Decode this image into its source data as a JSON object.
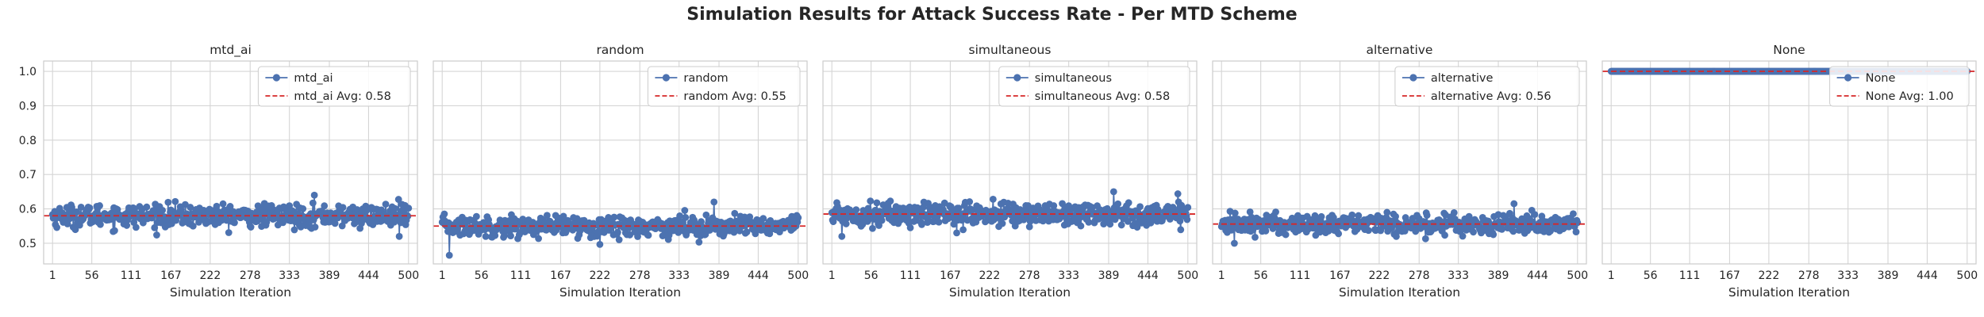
{
  "chart_data": {
    "type": "line",
    "title": "Simulation Results for Attack Success Rate - Per MTD Scheme",
    "xlabel": "Simulation Iteration",
    "ylabel": "",
    "xlim": [
      1,
      500
    ],
    "ylim": [
      0.44,
      1.03
    ],
    "xticks": [
      "1",
      "56",
      "111",
      "167",
      "222",
      "278",
      "333",
      "389",
      "444",
      "500"
    ],
    "yticks": [
      "0.5",
      "0.6",
      "0.7",
      "0.8",
      "0.9",
      "1.0"
    ],
    "grid": true,
    "shared_y": true,
    "panels": [
      {
        "title": "mtd_ai",
        "series_name": "mtd_ai",
        "avg_label": "mtd_ai Avg: 0.58",
        "avg": 0.58,
        "min": 0.52,
        "max": 0.64,
        "spread": 0.016,
        "legend": "top-right",
        "color": "#4c72b0",
        "avg_color": "#d62728"
      },
      {
        "title": "random",
        "series_name": "random",
        "avg_label": "random Avg: 0.55",
        "avg": 0.55,
        "min": 0.465,
        "max": 0.62,
        "spread": 0.015,
        "legend": "top-right",
        "color": "#4c72b0",
        "avg_color": "#d62728"
      },
      {
        "title": "simultaneous",
        "series_name": "simultaneous",
        "avg_label": "simultaneous Avg: 0.58",
        "avg": 0.585,
        "min": 0.52,
        "max": 0.65,
        "spread": 0.017,
        "legend": "top-right",
        "color": "#4c72b0",
        "avg_color": "#d62728"
      },
      {
        "title": "alternative",
        "series_name": "alternative",
        "avg_label": "alternative Avg: 0.56",
        "avg": 0.556,
        "min": 0.5,
        "max": 0.615,
        "spread": 0.015,
        "legend": "top-right",
        "color": "#4c72b0",
        "avg_color": "#d62728"
      },
      {
        "title": "None",
        "series_name": "None",
        "avg_label": "None Avg: 1.00",
        "avg": 1.0,
        "min": 1.0,
        "max": 1.0,
        "spread": 0.0,
        "legend": "top-right",
        "color": "#4c72b0",
        "avg_color": "#d62728"
      }
    ]
  }
}
